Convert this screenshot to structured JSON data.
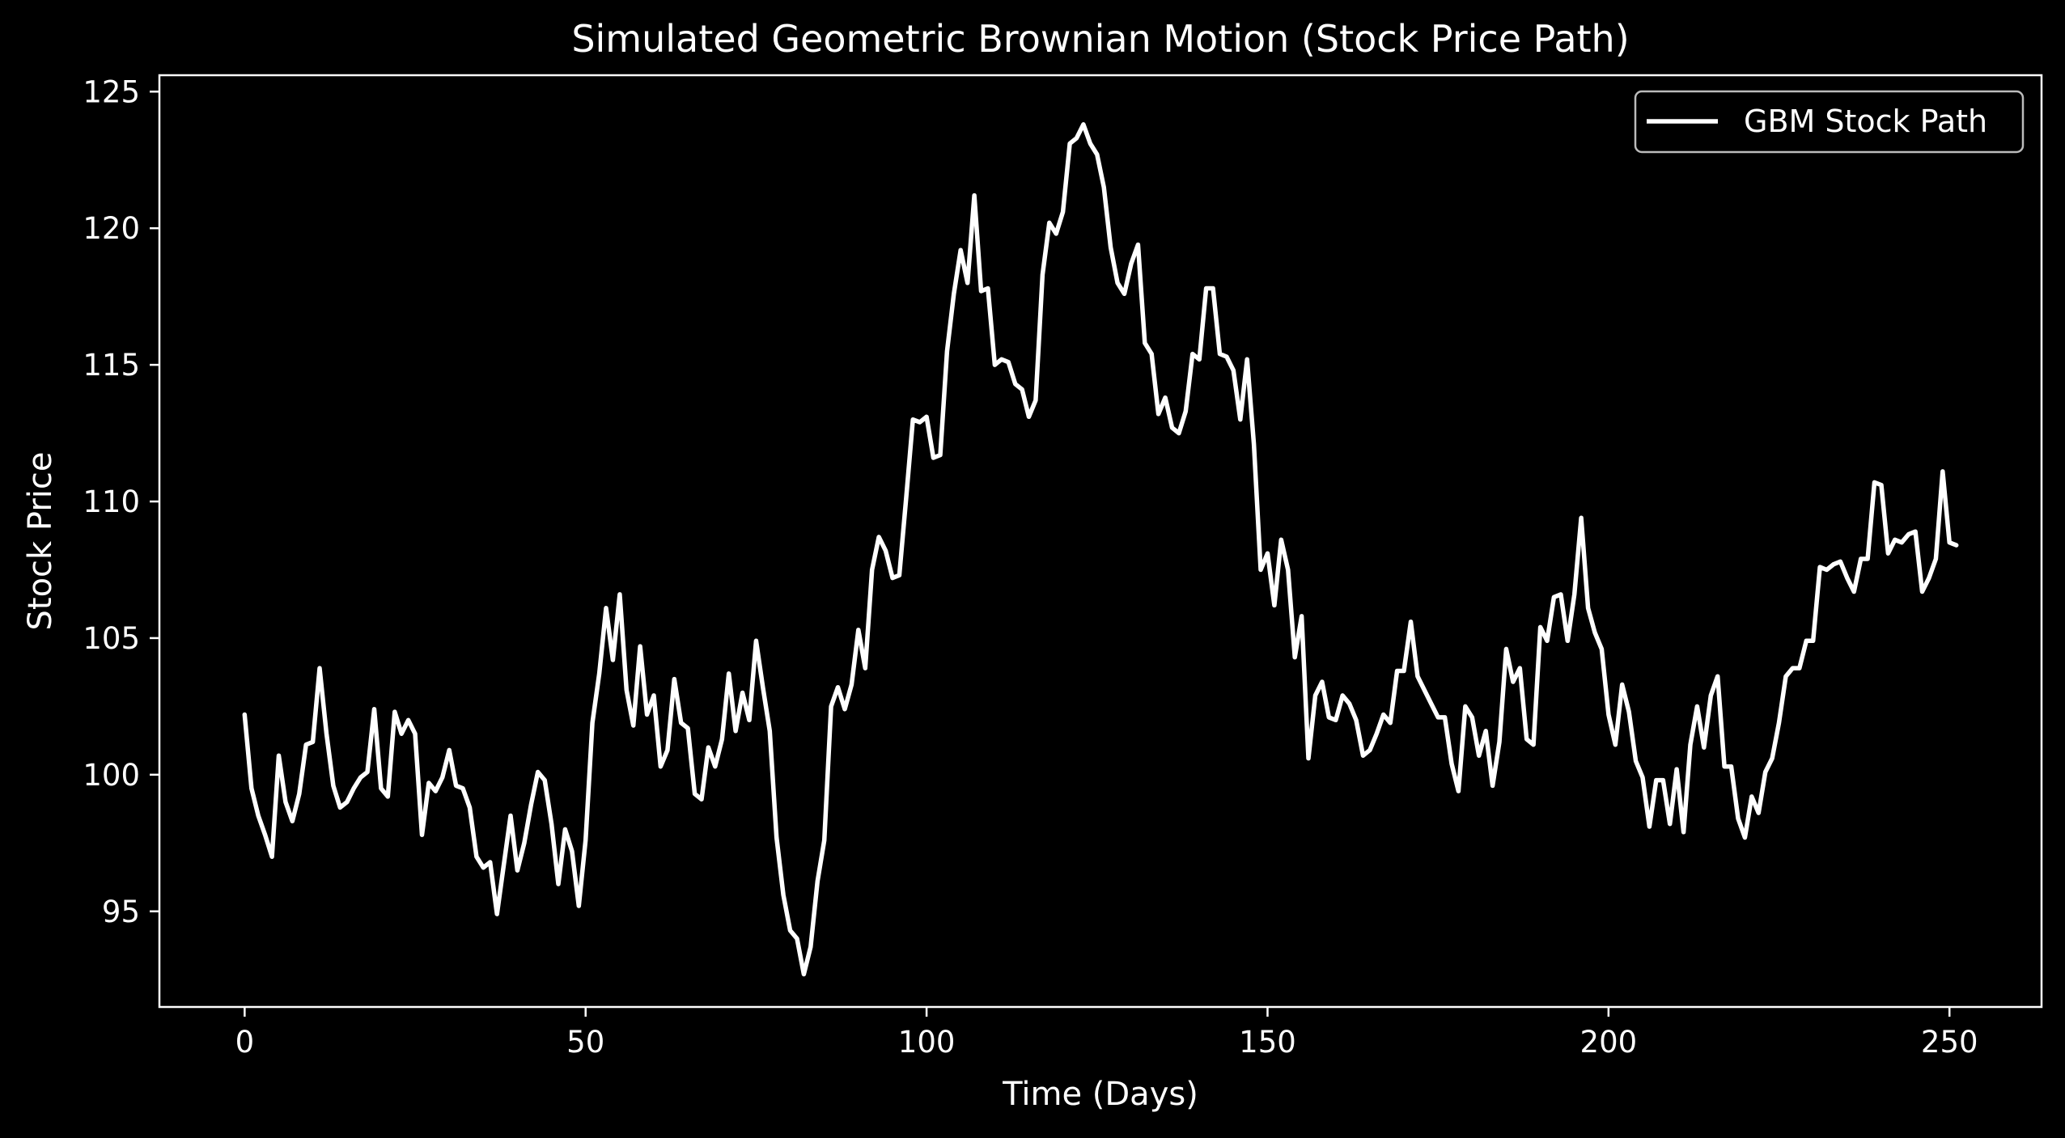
{
  "chart_data": {
    "type": "line",
    "title": "Simulated Geometric Brownian Motion (Stock Price Path)",
    "xlabel": "Time (Days)",
    "ylabel": "Stock Price",
    "xlim": [
      -12.5,
      263.5
    ],
    "ylim": [
      91.5,
      125.6
    ],
    "xticks": [
      0,
      50,
      100,
      150,
      200,
      250
    ],
    "xtick_labels": [
      "0",
      "50",
      "100",
      "150",
      "200",
      "250"
    ],
    "yticks": [
      95,
      100,
      105,
      110,
      115,
      120,
      125
    ],
    "ytick_labels": [
      "95",
      "100",
      "105",
      "110",
      "115",
      "120",
      "125"
    ],
    "grid": false,
    "legend_position": "top-right",
    "colors": {
      "background": "#000000",
      "foreground": "#ffffff",
      "line": "#ffffff",
      "legend_border": "#bbbbbb"
    },
    "series": [
      {
        "name": "GBM Stock Path",
        "x": [
          0,
          1,
          2,
          3,
          4,
          5,
          6,
          7,
          8,
          9,
          10,
          11,
          12,
          13,
          14,
          15,
          16,
          17,
          18,
          19,
          20,
          21,
          22,
          23,
          24,
          25,
          26,
          27,
          28,
          29,
          30,
          31,
          32,
          33,
          34,
          35,
          36,
          37,
          38,
          39,
          40,
          41,
          42,
          43,
          44,
          45,
          46,
          47,
          48,
          49,
          50,
          51,
          52,
          53,
          54,
          55,
          56,
          57,
          58,
          59,
          60,
          61,
          62,
          63,
          64,
          65,
          66,
          67,
          68,
          69,
          70,
          71,
          72,
          73,
          74,
          75,
          76,
          77,
          78,
          79,
          80,
          81,
          82,
          83,
          84,
          85,
          86,
          87,
          88,
          89,
          90,
          91,
          92,
          93,
          94,
          95,
          96,
          97,
          98,
          99,
          100,
          101,
          102,
          103,
          104,
          105,
          106,
          107,
          108,
          109,
          110,
          111,
          112,
          113,
          114,
          115,
          116,
          117,
          118,
          119,
          120,
          121,
          122,
          123,
          124,
          125,
          126,
          127,
          128,
          129,
          130,
          131,
          132,
          133,
          134,
          135,
          136,
          137,
          138,
          139,
          140,
          141,
          142,
          143,
          144,
          145,
          146,
          147,
          148,
          149,
          150,
          151,
          152,
          153,
          154,
          155,
          156,
          157,
          158,
          159,
          160,
          161,
          162,
          163,
          164,
          165,
          166,
          167,
          168,
          169,
          170,
          171,
          172,
          173,
          174,
          175,
          176,
          177,
          178,
          179,
          180,
          181,
          182,
          183,
          184,
          185,
          186,
          187,
          188,
          189,
          190,
          191,
          192,
          193,
          194,
          195,
          196,
          197,
          198,
          199,
          200,
          201,
          202,
          203,
          204,
          205,
          206,
          207,
          208,
          209,
          210,
          211,
          212,
          213,
          214,
          215,
          216,
          217,
          218,
          219,
          220,
          221,
          222,
          223,
          224,
          225,
          226,
          227,
          228,
          229,
          230,
          231,
          232,
          233,
          234,
          235,
          236,
          237,
          238,
          239,
          240,
          241,
          242,
          243,
          244,
          245,
          246,
          247,
          248,
          249,
          250,
          251
        ],
        "values": [
          102.2,
          99.5,
          98.5,
          97.8,
          97.0,
          100.7,
          99.0,
          98.3,
          99.3,
          101.1,
          101.2,
          103.9,
          101.5,
          99.6,
          98.8,
          99.0,
          99.5,
          99.9,
          100.1,
          102.4,
          99.5,
          99.2,
          102.3,
          101.5,
          102.0,
          101.5,
          97.8,
          99.7,
          99.4,
          99.9,
          100.9,
          99.6,
          99.5,
          98.8,
          97.0,
          96.6,
          96.8,
          94.9,
          96.7,
          98.5,
          96.5,
          97.5,
          98.9,
          100.1,
          99.8,
          98.2,
          96.0,
          98.0,
          97.2,
          95.2,
          97.6,
          101.9,
          103.7,
          106.1,
          104.2,
          106.6,
          103.1,
          101.8,
          104.7,
          102.2,
          102.9,
          100.3,
          100.9,
          103.5,
          101.9,
          101.7,
          99.3,
          99.1,
          101.0,
          100.3,
          101.3,
          103.7,
          101.6,
          103.0,
          102.0,
          104.9,
          103.2,
          101.6,
          97.7,
          95.6,
          94.3,
          94.0,
          92.7,
          93.7,
          96.1,
          97.6,
          102.5,
          103.2,
          102.4,
          103.3,
          105.3,
          103.9,
          107.5,
          108.7,
          108.2,
          107.2,
          107.3,
          110.1,
          113.0,
          112.9,
          113.1,
          111.6,
          111.7,
          115.5,
          117.6,
          119.2,
          118.0,
          121.2,
          117.7,
          117.8,
          115.0,
          115.2,
          115.1,
          114.3,
          114.1,
          113.1,
          113.7,
          118.3,
          120.2,
          119.8,
          120.6,
          123.1,
          123.3,
          123.8,
          123.1,
          122.7,
          121.5,
          119.3,
          118.0,
          117.6,
          118.7,
          119.4,
          115.8,
          115.4,
          113.2,
          113.8,
          112.7,
          112.5,
          113.3,
          115.4,
          115.2,
          117.8,
          117.8,
          115.4,
          115.3,
          114.8,
          113.0,
          115.2,
          112.1,
          107.5,
          108.1,
          106.2,
          108.6,
          107.5,
          104.3,
          105.8,
          100.6,
          102.9,
          103.4,
          102.1,
          102.0,
          102.9,
          102.6,
          102.0,
          100.7,
          100.9,
          101.5,
          102.2,
          101.9,
          103.8,
          103.8,
          105.6,
          103.6,
          103.1,
          102.6,
          102.1,
          102.1,
          100.4,
          99.4,
          102.5,
          102.1,
          100.7,
          101.6,
          99.6,
          101.2,
          104.6,
          103.4,
          103.9,
          101.3,
          101.1,
          105.4,
          104.9,
          106.5,
          106.6,
          104.9,
          106.6,
          109.4,
          106.1,
          105.2,
          104.6,
          102.2,
          101.1,
          103.3,
          102.3,
          100.5,
          99.9,
          98.1,
          99.8,
          99.8,
          98.2,
          100.2,
          97.9,
          101.1,
          102.5,
          101.0,
          102.9,
          103.6,
          100.3,
          100.3,
          98.4,
          97.7,
          99.2,
          98.6,
          100.1,
          100.6,
          101.9,
          103.6,
          103.9,
          103.9,
          104.9,
          104.9,
          107.6,
          107.5,
          107.7,
          107.8,
          107.2,
          106.7,
          107.9,
          107.9,
          110.7,
          110.6,
          108.1,
          108.6,
          108.5,
          108.8,
          108.9,
          106.7,
          107.2,
          107.9,
          111.1,
          108.5,
          108.4
        ]
      }
    ]
  }
}
